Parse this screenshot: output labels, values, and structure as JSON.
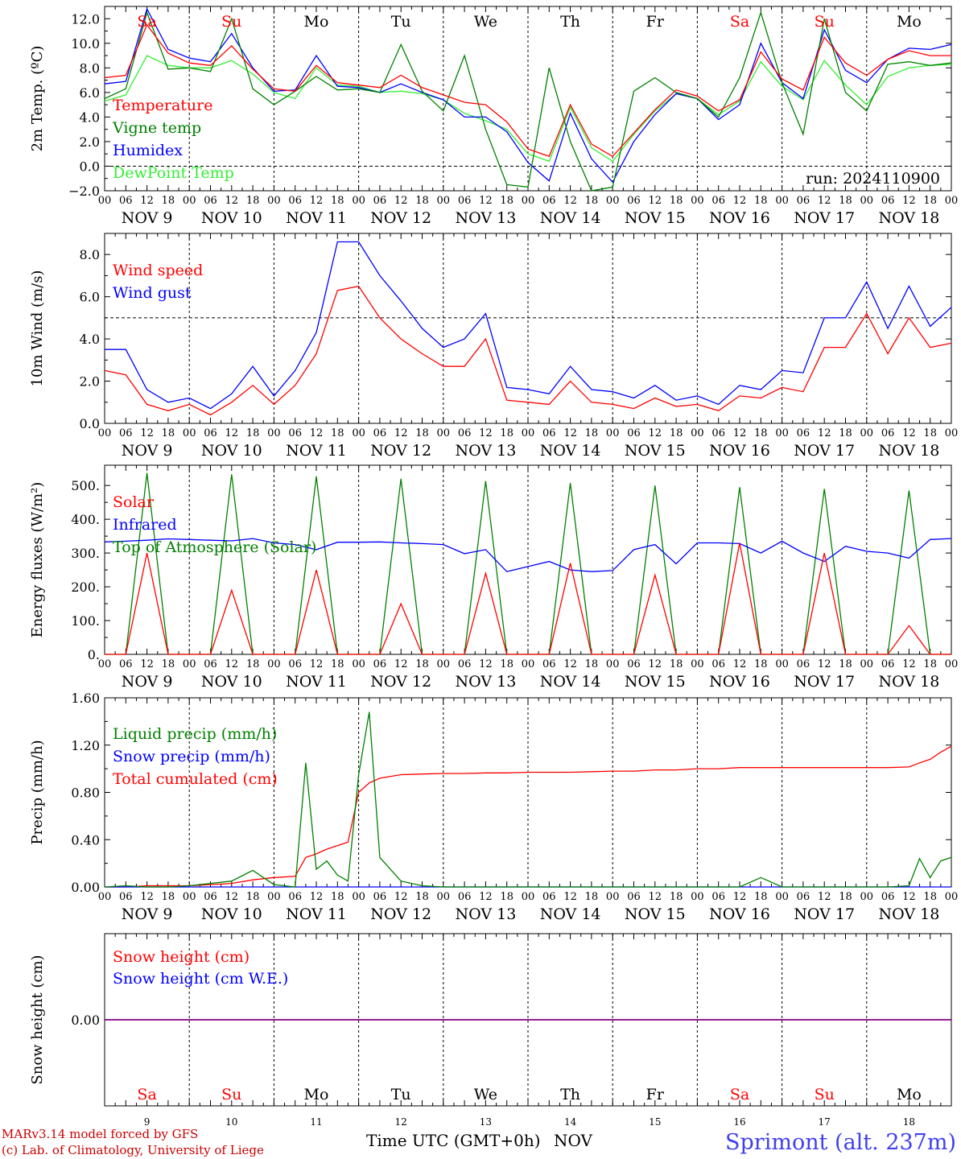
{
  "colors": {
    "red": "#ff0000",
    "dark_green": "#008000",
    "blue": "#0000ff",
    "light_green": "#33ee33",
    "purple": "#800080",
    "weekend": "#ff0000",
    "weekday": "#000000"
  },
  "x_axis": {
    "hour_labels": [
      "00",
      "06",
      "12",
      "18"
    ],
    "date_labels": [
      "NOV  9",
      "NOV 10",
      "NOV 11",
      "NOV 12",
      "NOV 13",
      "NOV 14",
      "NOV 15",
      "NOV 16",
      "NOV 17",
      "NOV 18"
    ],
    "day_labels": [
      "Sa",
      "Su",
      "Mo",
      "Tu",
      "We",
      "Th",
      "Fr",
      "Sa",
      "Su",
      "Mo"
    ],
    "day_weekend": [
      true,
      true,
      false,
      false,
      false,
      false,
      false,
      true,
      true,
      false
    ],
    "bottom_day_numbers": [
      "9",
      "10",
      "11",
      "12",
      "13",
      "14",
      "15",
      "16",
      "17",
      "18"
    ],
    "xlabel": "Time UTC (GMT+0h)",
    "xlabel_suffix": "NOV"
  },
  "footer": {
    "model": "MARv3.14 model forced by GFS",
    "lab": "(c) Lab. of Climatology, University of Liege",
    "station": "Sprimont (alt. 237m)"
  },
  "chart_data": [
    {
      "type": "line",
      "ylabel": "2m Temp. (ºC)",
      "ylim": [
        -2,
        13
      ],
      "yticks": [
        "−2.0",
        "0.0",
        "2.0",
        "4.0",
        "6.0",
        "8.0",
        "10.0",
        "12.0"
      ],
      "ytick_values": [
        -2,
        0,
        2,
        4,
        6,
        8,
        10,
        12
      ],
      "reference_line": 0,
      "annotation": "run: 2024110900",
      "x_hours": [
        0,
        6,
        12,
        18,
        24,
        30,
        36,
        42,
        48,
        54,
        60,
        66,
        72,
        78,
        84,
        90,
        96,
        102,
        108,
        114,
        120,
        126,
        132,
        138,
        144,
        150,
        156,
        162,
        168,
        174,
        180,
        186,
        192,
        198,
        204,
        210,
        216,
        222,
        228,
        234,
        240
      ],
      "series": [
        {
          "name": "Temperature",
          "color": "red",
          "values": [
            7.2,
            7.4,
            11.5,
            9.2,
            8.4,
            8.2,
            9.8,
            7.9,
            6.3,
            6.1,
            8.2,
            6.8,
            6.6,
            6.4,
            7.4,
            6.4,
            5.8,
            5.2,
            5.0,
            3.6,
            1.4,
            0.8,
            5.0,
            1.8,
            0.8,
            2.7,
            4.6,
            6.2,
            5.7,
            4.5,
            5.4,
            9.3,
            7.1,
            6.2,
            10.5,
            8.4,
            7.4,
            8.7,
            9.4,
            9.0,
            9.0
          ]
        },
        {
          "name": "Vigne temp",
          "color": "dark_green",
          "values": [
            5.5,
            6.3,
            12.5,
            7.9,
            8.0,
            7.7,
            12.0,
            6.3,
            5.0,
            6.1,
            7.3,
            6.2,
            6.3,
            6.0,
            9.9,
            6.1,
            4.5,
            9.0,
            3.0,
            -1.5,
            -1.7,
            8.0,
            2.0,
            -2.0,
            -1.7,
            6.1,
            7.2,
            6.0,
            5.5,
            4.0,
            7.2,
            12.5,
            6.8,
            2.6,
            12.0,
            6.0,
            4.5,
            8.3,
            8.5,
            8.2,
            8.4
          ]
        },
        {
          "name": "Humidex",
          "color": "blue",
          "values": [
            6.7,
            6.9,
            12.8,
            9.5,
            8.8,
            8.5,
            10.8,
            8.0,
            6.1,
            6.2,
            9.0,
            6.5,
            6.4,
            6.0,
            6.7,
            6.0,
            5.4,
            4.0,
            4.0,
            2.8,
            0.3,
            -1.2,
            4.3,
            0.6,
            -1.3,
            2.0,
            4.2,
            5.9,
            5.5,
            3.8,
            5.0,
            10.0,
            6.8,
            5.5,
            11.1,
            7.8,
            6.8,
            8.7,
            9.6,
            9.5,
            9.9
          ]
        },
        {
          "name": "DewPoint Temp",
          "color": "light_green",
          "values": [
            5.3,
            5.8,
            9.0,
            8.2,
            8.0,
            8.0,
            8.6,
            7.5,
            6.0,
            5.5,
            8.0,
            6.6,
            6.5,
            6.0,
            6.1,
            5.9,
            5.4,
            4.3,
            3.7,
            3.0,
            1.0,
            0.4,
            4.8,
            1.5,
            0.4,
            2.6,
            4.5,
            5.9,
            5.5,
            4.2,
            5.3,
            8.5,
            6.5,
            5.4,
            8.6,
            6.6,
            5.0,
            7.3,
            8.0,
            8.2,
            8.3
          ]
        }
      ]
    },
    {
      "type": "line",
      "ylabel": "10m Wind (m/s)",
      "ylim": [
        0,
        9
      ],
      "yticks": [
        "0.0",
        "2.0",
        "4.0",
        "6.0",
        "8.0"
      ],
      "ytick_values": [
        0,
        2,
        4,
        6,
        8
      ],
      "reference_line": 5,
      "x_hours": [
        0,
        6,
        12,
        18,
        24,
        30,
        36,
        42,
        48,
        54,
        60,
        66,
        72,
        78,
        84,
        90,
        96,
        102,
        108,
        114,
        120,
        126,
        132,
        138,
        144,
        150,
        156,
        162,
        168,
        174,
        180,
        186,
        192,
        198,
        204,
        210,
        216,
        222,
        228,
        234,
        240
      ],
      "series": [
        {
          "name": "Wind speed",
          "color": "red",
          "values": [
            2.5,
            2.3,
            0.9,
            0.6,
            0.9,
            0.4,
            1.0,
            1.8,
            0.9,
            1.8,
            3.3,
            6.3,
            6.5,
            5.0,
            4.0,
            3.3,
            2.7,
            2.7,
            4.0,
            1.1,
            1.0,
            0.9,
            2.0,
            1.0,
            0.9,
            0.7,
            1.2,
            0.8,
            0.9,
            0.6,
            1.3,
            1.2,
            1.7,
            1.5,
            3.6,
            3.6,
            5.2,
            3.3,
            5.0,
            3.6,
            3.8
          ]
        },
        {
          "name": "Wind gust",
          "color": "blue",
          "values": [
            3.5,
            3.5,
            1.6,
            1.0,
            1.2,
            0.7,
            1.4,
            2.7,
            1.3,
            2.5,
            4.3,
            8.6,
            8.6,
            7.0,
            5.8,
            4.5,
            3.6,
            4.0,
            5.2,
            1.7,
            1.6,
            1.4,
            2.7,
            1.6,
            1.5,
            1.2,
            1.8,
            1.1,
            1.3,
            0.9,
            1.8,
            1.6,
            2.5,
            2.4,
            5.0,
            5.0,
            6.7,
            4.5,
            6.5,
            4.6,
            5.5
          ]
        }
      ]
    },
    {
      "type": "line",
      "ylabel": "Energy fluxes (W/m²)",
      "ylim": [
        0,
        560
      ],
      "yticks": [
        "0.",
        "100.",
        "200.",
        "300.",
        "400.",
        "500."
      ],
      "ytick_values": [
        0,
        100,
        200,
        300,
        400,
        500
      ],
      "x_hours": [
        0,
        6,
        12,
        18,
        24,
        30,
        36,
        42,
        48,
        54,
        60,
        66,
        72,
        78,
        84,
        90,
        96,
        102,
        108,
        114,
        120,
        126,
        132,
        138,
        144,
        150,
        156,
        162,
        168,
        174,
        180,
        186,
        192,
        198,
        204,
        210,
        216,
        222,
        228,
        234,
        240
      ],
      "series": [
        {
          "name": "Solar",
          "color": "red",
          "values": [
            0,
            0,
            300,
            0,
            0,
            0,
            190,
            0,
            0,
            0,
            250,
            0,
            0,
            0,
            150,
            0,
            0,
            0,
            240,
            0,
            0,
            0,
            270,
            0,
            0,
            0,
            235,
            0,
            0,
            0,
            330,
            0,
            0,
            0,
            300,
            0,
            0,
            0,
            85,
            0,
            0
          ]
        },
        {
          "name": "Infrared",
          "color": "blue",
          "values": [
            333,
            335,
            338,
            342,
            340,
            338,
            336,
            343,
            330,
            325,
            310,
            332,
            332,
            333,
            330,
            328,
            325,
            298,
            310,
            245,
            260,
            275,
            250,
            245,
            248,
            310,
            325,
            268,
            330,
            330,
            328,
            300,
            335,
            300,
            275,
            320,
            305,
            300,
            285,
            340,
            343
          ]
        },
        {
          "name": "Top of Atmosphere (Solar)",
          "color": "dark_green",
          "values": [
            0,
            0,
            537,
            0,
            0,
            0,
            533,
            0,
            0,
            0,
            527,
            0,
            0,
            0,
            520,
            0,
            0,
            0,
            513,
            0,
            0,
            0,
            507,
            0,
            0,
            0,
            500,
            0,
            0,
            0,
            495,
            0,
            0,
            0,
            490,
            0,
            0,
            0,
            485,
            0,
            0
          ]
        }
      ]
    },
    {
      "type": "line",
      "ylabel": "Precip (mm/h)",
      "ylim": [
        0,
        1.6
      ],
      "yticks": [
        "0.00",
        "0.40",
        "0.80",
        "1.20",
        "1.60"
      ],
      "ytick_values": [
        0,
        0.4,
        0.8,
        1.2,
        1.6
      ],
      "x_hours": [
        0,
        6,
        12,
        18,
        24,
        30,
        36,
        42,
        48,
        54,
        57,
        60,
        63,
        66,
        69,
        72,
        75,
        78,
        84,
        90,
        96,
        102,
        108,
        114,
        120,
        126,
        132,
        138,
        144,
        150,
        156,
        162,
        168,
        174,
        180,
        186,
        192,
        198,
        204,
        210,
        216,
        222,
        228,
        231,
        234,
        237,
        240
      ],
      "series": [
        {
          "name": "Liquid precip (mm/h)",
          "color": "dark_green",
          "values": [
            0,
            0.01,
            0,
            0,
            0.01,
            0.03,
            0.05,
            0.14,
            0.02,
            0,
            1.05,
            0.15,
            0.22,
            0.1,
            0.05,
            0.95,
            1.48,
            0.25,
            0.05,
            0.01,
            0,
            0,
            0,
            0,
            0,
            0,
            0,
            0,
            0,
            0,
            0,
            0,
            0,
            0,
            0,
            0.08,
            0,
            0,
            0,
            0,
            0,
            0,
            0.01,
            0.24,
            0.08,
            0.22,
            0.25
          ]
        },
        {
          "name": "Snow precip (mm/h)",
          "color": "blue",
          "values": [
            0,
            0,
            0,
            0,
            0,
            0,
            0,
            0,
            0,
            0,
            0,
            0,
            0,
            0,
            0,
            0,
            0,
            0,
            0,
            0,
            0,
            0,
            0,
            0,
            0,
            0,
            0,
            0,
            0,
            0,
            0,
            0,
            0,
            0,
            0,
            0,
            0,
            0,
            0,
            0,
            0,
            0,
            0,
            0,
            0,
            0,
            0
          ]
        },
        {
          "name": "Total cumulated (cm)",
          "color": "red",
          "values": [
            0,
            0,
            0.01,
            0.01,
            0.01,
            0.02,
            0.03,
            0.06,
            0.08,
            0.09,
            0.25,
            0.28,
            0.32,
            0.35,
            0.38,
            0.8,
            0.88,
            0.92,
            0.95,
            0.955,
            0.96,
            0.96,
            0.965,
            0.965,
            0.97,
            0.97,
            0.97,
            0.975,
            0.98,
            0.98,
            0.99,
            0.99,
            1.0,
            1.0,
            1.01,
            1.01,
            1.01,
            1.01,
            1.01,
            1.01,
            1.01,
            1.01,
            1.015,
            1.05,
            1.08,
            1.14,
            1.19
          ]
        }
      ]
    },
    {
      "type": "line",
      "ylabel": "Snow height (cm)",
      "ylim": [
        -1,
        1
      ],
      "yticks": [
        "0.00"
      ],
      "ytick_values": [
        0
      ],
      "x_hours": [
        0,
        240
      ],
      "series": [
        {
          "name": "Snow height (cm)",
          "color": "red",
          "values": [
            0,
            0
          ]
        },
        {
          "name": "Snow height (cm W.E.)",
          "color": "blue",
          "values": [
            0,
            0
          ]
        }
      ]
    }
  ]
}
